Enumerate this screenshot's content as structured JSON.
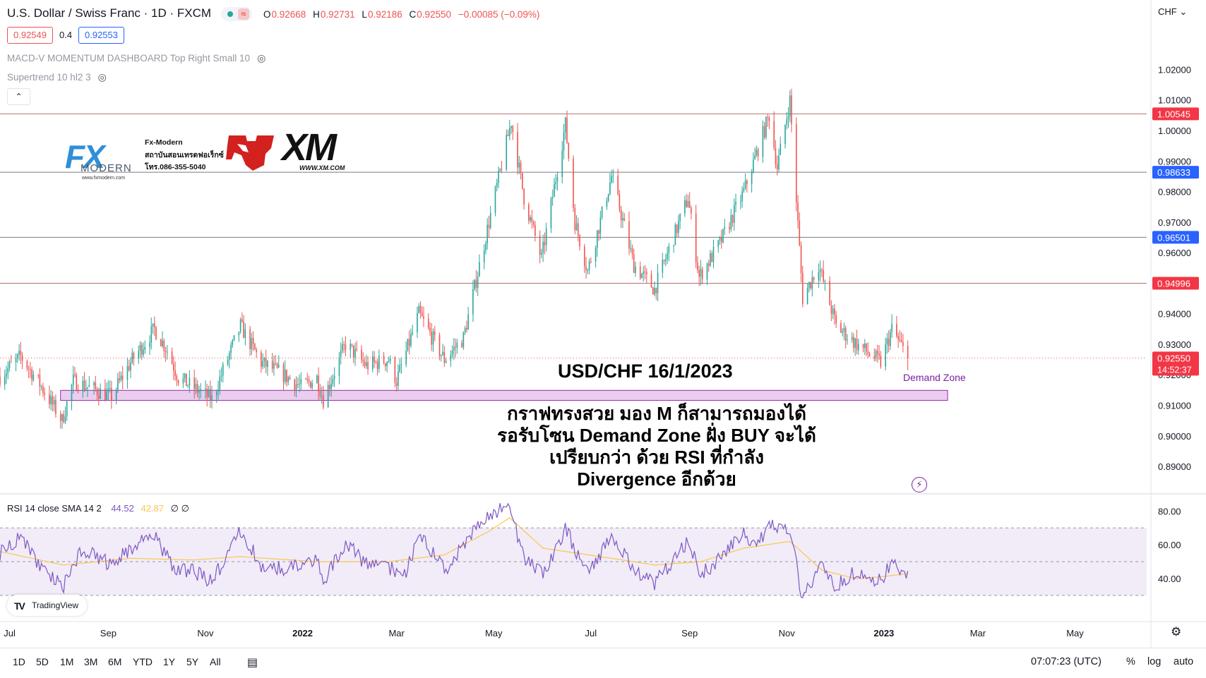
{
  "header": {
    "title": "U.S. Dollar / Swiss Franc · 1D · FXCM",
    "ohlc": {
      "o_label": "O",
      "o": "0.92668",
      "h_label": "H",
      "h": "0.92731",
      "l_label": "L",
      "l": "0.92186",
      "c_label": "C",
      "c": "0.92550",
      "change": "−0.00085 (−0.09%)"
    },
    "bid": "0.92549",
    "spread": "0.4",
    "ask": "0.92553",
    "currency": "CHF"
  },
  "indicators": {
    "macd": "MACD-V MOMENTUM DASHBOARD Top Right Small 10",
    "supertrend": "Supertrend 10 hl2 3"
  },
  "logos": {
    "fx_brand": "FX",
    "fx_modern": "MODERN",
    "fx_url": "www.fxmodern.com",
    "fx_name": "Fx-Modern",
    "fx_slogan": "สถาบันสอนเทรดฟอเร็กซ์",
    "fx_phone": "โทร.086-355-5040",
    "xm": "XM",
    "xm_url": "WWW.XM.COM"
  },
  "annotation": {
    "title": "USD/CHF 16/1/2023",
    "line1": "กราฟทรงสวย มอง M ก็สามารถมองได้",
    "line2": "รอรับโซน Demand Zone ฝั่ง BUY จะได้",
    "line3": "เปรียบกว่า ด้วย RSI ที่กำลัง",
    "line4": "Divergence อีกด้วย",
    "demand_zone_label": "Demand Zone"
  },
  "rsi_legend": {
    "name": "RSI 14 close SMA 14 2",
    "rsi": "44.52",
    "sma": "42.87",
    "extra": "∅ ∅"
  },
  "tradingview": "TradingView",
  "bottom_bar": {
    "ranges": [
      "1D",
      "5D",
      "1M",
      "3M",
      "6M",
      "YTD",
      "1Y",
      "5Y",
      "All"
    ],
    "time": "07:07:23 (UTC)",
    "percent": "%",
    "log": "log",
    "auto": "auto"
  },
  "colors": {
    "up": "#26a69a",
    "down": "#ef5350",
    "horizontal_line": "#b2736e",
    "demand_zone_fill": "#e1bee7",
    "demand_zone_border": "#9c27b0",
    "rsi_line": "#7e57c2",
    "rsi_sma": "#f9c74f",
    "rsi_band": "#ede7f6",
    "price_tag_blue": "#2962ff",
    "price_tag_red": "#f23645"
  },
  "chart_data": [
    {
      "type": "candlestick",
      "symbol": "USD/CHF",
      "timeframe": "1D",
      "y_ticks": [
        0.89,
        0.9,
        0.91,
        0.92,
        0.93,
        0.94,
        0.95,
        0.96,
        0.97,
        0.98,
        0.99,
        1.0,
        1.01,
        1.02
      ],
      "ylim": [
        0.881,
        1.0335
      ],
      "x_ticks": [
        {
          "label": "Jul",
          "date": "2021-07-01"
        },
        {
          "label": "Sep",
          "date": "2021-09-01"
        },
        {
          "label": "Nov",
          "date": "2021-11-01"
        },
        {
          "label": "2022",
          "date": "2022-01-01",
          "bold": true
        },
        {
          "label": "Mar",
          "date": "2022-03-01"
        },
        {
          "label": "May",
          "date": "2022-05-01"
        },
        {
          "label": "Jul",
          "date": "2022-07-01"
        },
        {
          "label": "Sep",
          "date": "2022-09-01"
        },
        {
          "label": "Nov",
          "date": "2022-11-01"
        },
        {
          "label": "2023",
          "date": "2023-01-01",
          "bold": true
        },
        {
          "label": "Mar",
          "date": "2023-03-01"
        },
        {
          "label": "May",
          "date": "2023-05-01"
        }
      ],
      "x_range": [
        "2021-06-25",
        "2023-06-15"
      ],
      "price_path": [
        [
          "2021-06-25",
          0.9195
        ],
        [
          "2021-07-08",
          0.926
        ],
        [
          "2021-07-20",
          0.917
        ],
        [
          "2021-08-03",
          0.905
        ],
        [
          "2021-08-10",
          0.918
        ],
        [
          "2021-08-24",
          0.915
        ],
        [
          "2021-09-03",
          0.913
        ],
        [
          "2021-09-15",
          0.924
        ],
        [
          "2021-09-30",
          0.935
        ],
        [
          "2021-10-08",
          0.928
        ],
        [
          "2021-10-15",
          0.919
        ],
        [
          "2021-10-27",
          0.915
        ],
        [
          "2021-11-05",
          0.912
        ],
        [
          "2021-11-23",
          0.936
        ],
        [
          "2021-12-06",
          0.924
        ],
        [
          "2021-12-20",
          0.92
        ],
        [
          "2021-12-31",
          0.916
        ],
        [
          "2022-01-10",
          0.919
        ],
        [
          "2022-01-14",
          0.912
        ],
        [
          "2022-01-28",
          0.93
        ],
        [
          "2022-02-10",
          0.923
        ],
        [
          "2022-02-24",
          0.925
        ],
        [
          "2022-03-01",
          0.918
        ],
        [
          "2022-03-15",
          0.94
        ],
        [
          "2022-03-31",
          0.925
        ],
        [
          "2022-04-12",
          0.932
        ],
        [
          "2022-04-28",
          0.97
        ],
        [
          "2022-05-12",
          1.003
        ],
        [
          "2022-05-20",
          0.978
        ],
        [
          "2022-05-31",
          0.958
        ],
        [
          "2022-06-15",
          1.002
        ],
        [
          "2022-06-21",
          0.97
        ],
        [
          "2022-06-29",
          0.954
        ],
        [
          "2022-07-14",
          0.985
        ],
        [
          "2022-07-28",
          0.956
        ],
        [
          "2022-08-10",
          0.948
        ],
        [
          "2022-08-31",
          0.978
        ],
        [
          "2022-09-07",
          0.952
        ],
        [
          "2022-09-20",
          0.963
        ],
        [
          "2022-10-05",
          0.98
        ],
        [
          "2022-10-21",
          1.005
        ],
        [
          "2022-10-26",
          0.988
        ],
        [
          "2022-11-03",
          1.01
        ],
        [
          "2022-11-11",
          0.945
        ],
        [
          "2022-11-21",
          0.956
        ],
        [
          "2022-12-02",
          0.936
        ],
        [
          "2022-12-15",
          0.93
        ],
        [
          "2022-12-30",
          0.924
        ],
        [
          "2023-01-06",
          0.935
        ],
        [
          "2023-01-16",
          0.9255
        ]
      ],
      "last_close": 0.9255,
      "horizontal_lines": [
        {
          "price": 1.00545,
          "label": "1.00545",
          "tag": "red"
        },
        {
          "price": 0.98633,
          "label": "0.98633",
          "tag": "blue"
        },
        {
          "price": 0.96501,
          "label": "0.96501",
          "tag": "blue"
        },
        {
          "price": 0.94996,
          "label": "0.94996",
          "tag": "red"
        }
      ],
      "current_price_tag": {
        "price": 0.9255,
        "label": "0.92550",
        "countdown": "14:52:37"
      },
      "demand_zone": {
        "x_from": "2021-08-02",
        "x_to": "2023-02-10",
        "y_low": 0.9116,
        "y_high": 0.9149
      }
    },
    {
      "type": "line",
      "name": "RSI 14 close SMA 14 2",
      "y_ticks": [
        40,
        60,
        80
      ],
      "ylim": [
        17,
        86
      ],
      "band": [
        30,
        70
      ],
      "midline": 50,
      "rsi_path": [
        [
          "2021-06-25",
          55
        ],
        [
          "2021-07-08",
          65
        ],
        [
          "2021-07-22",
          45
        ],
        [
          "2021-08-04",
          36
        ],
        [
          "2021-08-16",
          58
        ],
        [
          "2021-09-03",
          48
        ],
        [
          "2021-09-15",
          58
        ],
        [
          "2021-09-29",
          67
        ],
        [
          "2021-10-12",
          46
        ],
        [
          "2021-10-25",
          44
        ],
        [
          "2021-11-05",
          38
        ],
        [
          "2021-11-23",
          68
        ],
        [
          "2021-12-06",
          48
        ],
        [
          "2021-12-21",
          45
        ],
        [
          "2022-01-10",
          52
        ],
        [
          "2022-01-14",
          38
        ],
        [
          "2022-01-28",
          62
        ],
        [
          "2022-02-10",
          48
        ],
        [
          "2022-02-24",
          46
        ],
        [
          "2022-03-07",
          44
        ],
        [
          "2022-03-16",
          67
        ],
        [
          "2022-03-31",
          45
        ],
        [
          "2022-04-14",
          62
        ],
        [
          "2022-04-28",
          78
        ],
        [
          "2022-05-11",
          83
        ],
        [
          "2022-05-20",
          52
        ],
        [
          "2022-06-01",
          42
        ],
        [
          "2022-06-15",
          70
        ],
        [
          "2022-06-29",
          42
        ],
        [
          "2022-07-14",
          66
        ],
        [
          "2022-07-29",
          44
        ],
        [
          "2022-08-10",
          37
        ],
        [
          "2022-08-31",
          62
        ],
        [
          "2022-09-08",
          42
        ],
        [
          "2022-09-20",
          52
        ],
        [
          "2022-10-05",
          66
        ],
        [
          "2022-10-13",
          57
        ],
        [
          "2022-10-20",
          71
        ],
        [
          "2022-11-03",
          68
        ],
        [
          "2022-11-11",
          28
        ],
        [
          "2022-11-23",
          47
        ],
        [
          "2022-12-02",
          35
        ],
        [
          "2022-12-14",
          44
        ],
        [
          "2022-12-30",
          38
        ],
        [
          "2023-01-06",
          51
        ],
        [
          "2023-01-11",
          43
        ],
        [
          "2023-01-16",
          44.5
        ]
      ],
      "sma_path": [
        [
          "2021-06-25",
          56
        ],
        [
          "2021-08-04",
          48
        ],
        [
          "2021-09-15",
          52
        ],
        [
          "2021-10-25",
          51
        ],
        [
          "2021-11-23",
          53
        ],
        [
          "2022-01-10",
          50
        ],
        [
          "2022-02-24",
          50
        ],
        [
          "2022-03-31",
          54
        ],
        [
          "2022-04-28",
          68
        ],
        [
          "2022-05-11",
          76
        ],
        [
          "2022-06-01",
          58
        ],
        [
          "2022-07-14",
          52
        ],
        [
          "2022-08-10",
          48
        ],
        [
          "2022-09-08",
          50
        ],
        [
          "2022-10-05",
          58
        ],
        [
          "2022-11-03",
          62
        ],
        [
          "2022-11-23",
          45
        ],
        [
          "2022-12-14",
          40
        ],
        [
          "2022-12-30",
          41
        ],
        [
          "2023-01-16",
          42.9
        ]
      ],
      "last_rsi": 44.52,
      "last_sma": 42.87
    }
  ]
}
